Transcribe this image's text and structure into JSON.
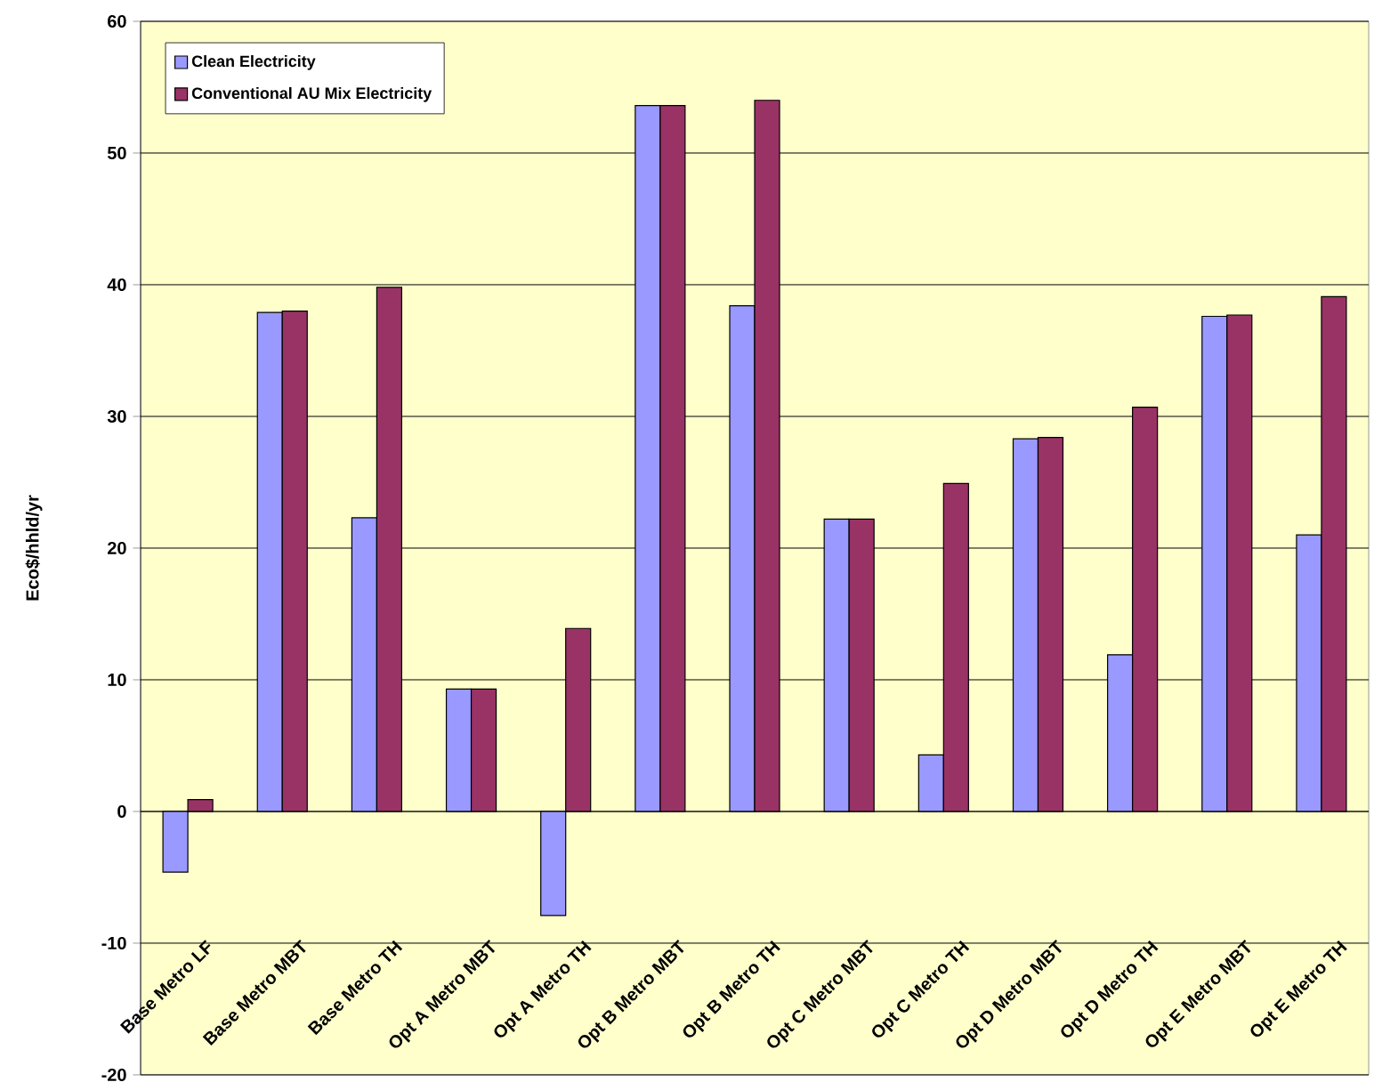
{
  "chart_data": {
    "type": "bar",
    "ylabel": "Eco$/hhld/yr",
    "categories": [
      "Base Metro LF",
      "Base Metro MBT",
      "Base Metro TH",
      "Opt A Metro MBT",
      "Opt A Metro TH",
      "Opt B Metro MBT",
      "Opt B Metro TH",
      "Opt C Metro MBT",
      "Opt C Metro TH",
      "Opt D Metro MBT",
      "Opt D Metro TH",
      "Opt E Metro MBT",
      "Opt E Metro TH"
    ],
    "series": [
      {
        "name": "Clean Electricity",
        "color": "#9999ff",
        "values": [
          -4.6,
          37.9,
          22.3,
          9.3,
          -7.9,
          53.6,
          38.4,
          22.2,
          4.3,
          28.3,
          11.9,
          37.6,
          21.0
        ]
      },
      {
        "name": "Conventional AU Mix Electricity",
        "color": "#993366",
        "values": [
          0.9,
          38.0,
          39.8,
          9.3,
          13.9,
          53.6,
          54.0,
          22.2,
          24.9,
          28.4,
          30.7,
          37.7,
          39.1
        ]
      }
    ],
    "ylim": [
      -20,
      60
    ],
    "yticks": [
      -20,
      -10,
      0,
      10,
      20,
      30,
      40,
      50,
      60
    ],
    "grid": "y",
    "legend": "top left"
  }
}
